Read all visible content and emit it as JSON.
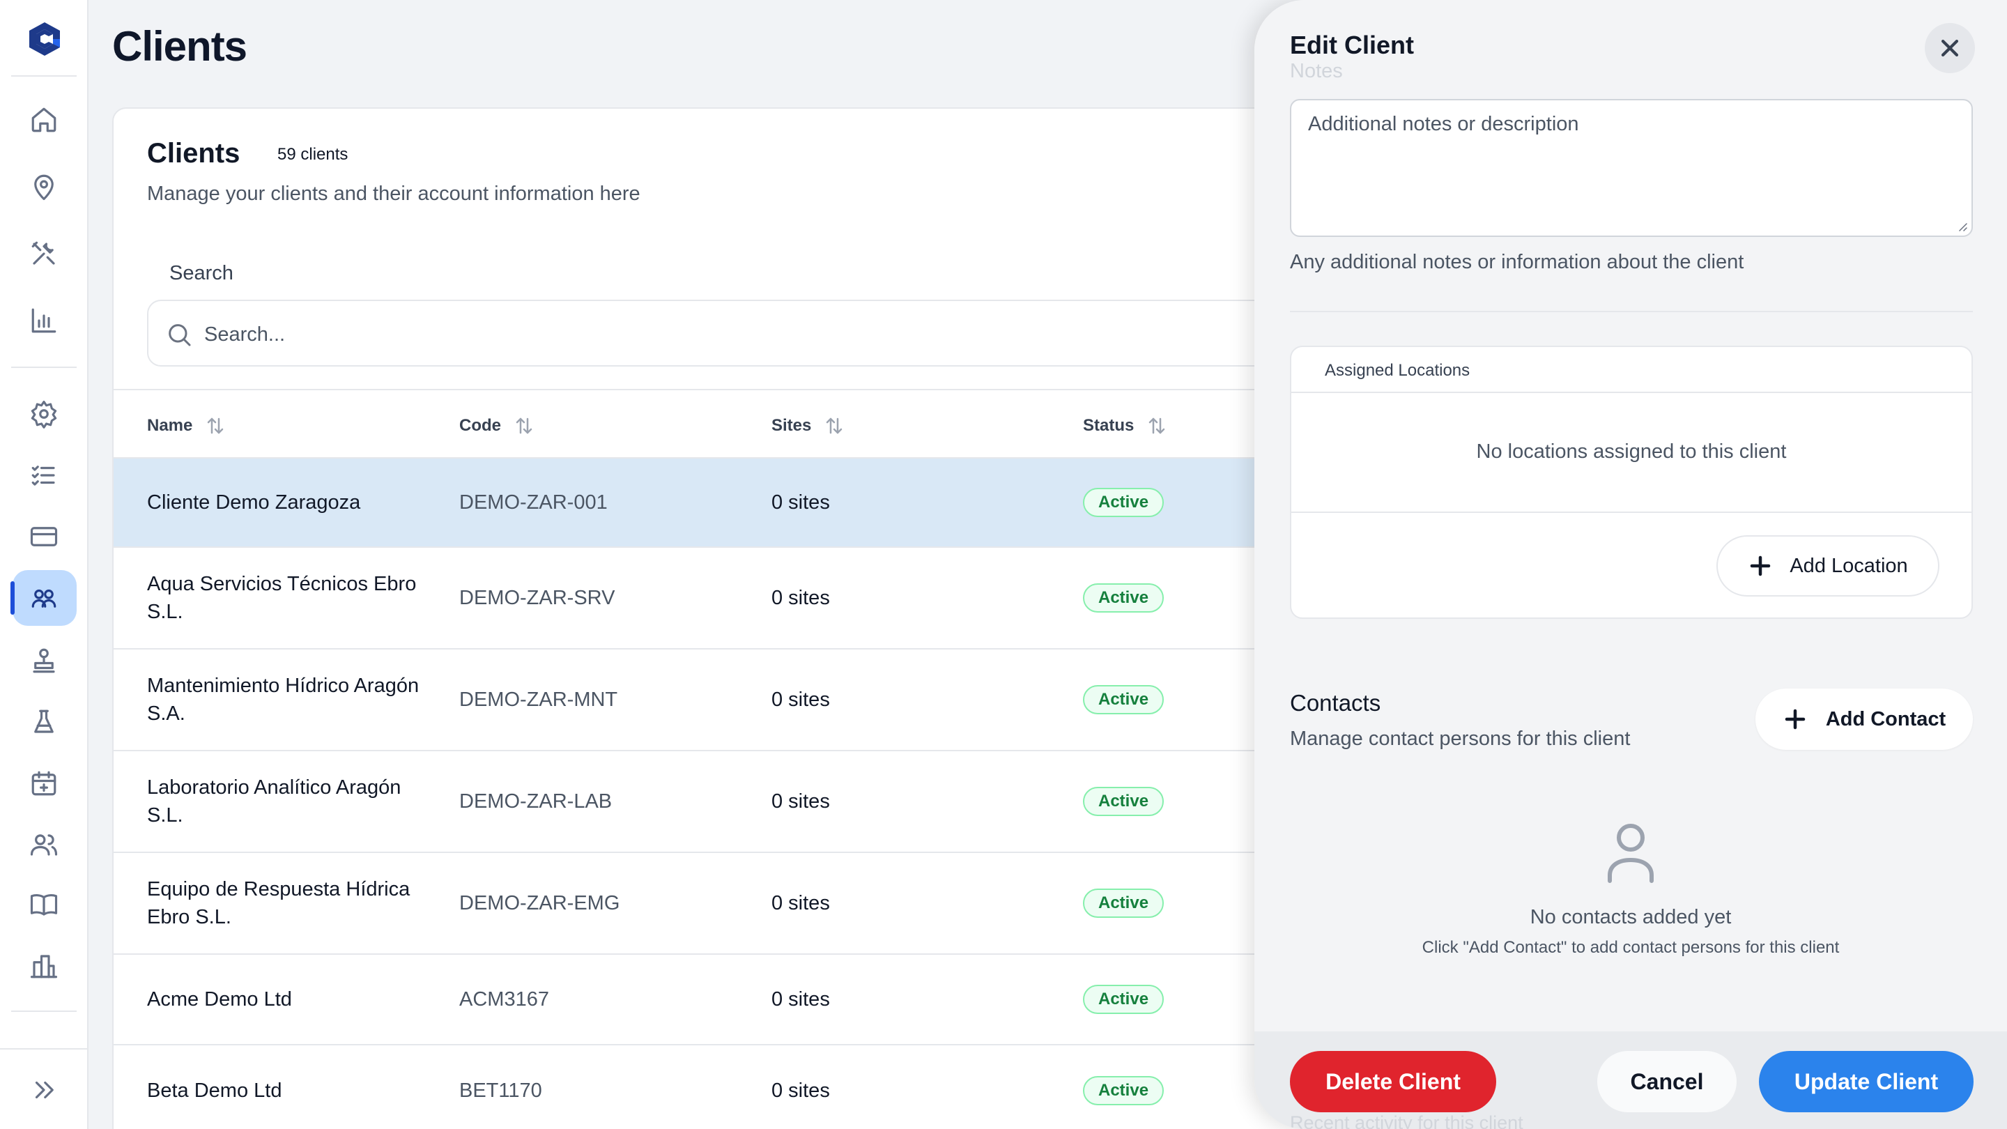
{
  "sidebar": {
    "logo": "logo-icon",
    "items": [
      {
        "name": "home-icon"
      },
      {
        "name": "map-pin-icon"
      },
      {
        "name": "tools-icon"
      },
      {
        "name": "bar-chart-icon"
      },
      {
        "name": "gear-icon"
      },
      {
        "name": "checklist-icon"
      },
      {
        "name": "credit-card-icon"
      },
      {
        "name": "users-icon",
        "active": true
      },
      {
        "name": "stamp-icon"
      },
      {
        "name": "flask-icon"
      },
      {
        "name": "calendar-plus-icon"
      },
      {
        "name": "team-icon"
      },
      {
        "name": "book-icon"
      },
      {
        "name": "building-icon"
      }
    ],
    "expand_icon": "chevrons-right-icon",
    "active_color": "#bfdbfe"
  },
  "page": {
    "title": "Clients"
  },
  "card": {
    "title": "Clients",
    "count": "59 clients",
    "subtitle": "Manage your clients and their account information here",
    "search_label": "Search",
    "search_placeholder": "Search..."
  },
  "table": {
    "columns": [
      "Name",
      "Code",
      "Sites",
      "Status"
    ],
    "rows": [
      {
        "name": "Cliente Demo Zaragoza",
        "code": "DEMO-ZAR-001",
        "sites": "0 sites",
        "status": "Active",
        "selected": true
      },
      {
        "name": "Aqua Servicios Técnicos Ebro S.L.",
        "code": "DEMO-ZAR-SRV",
        "sites": "0 sites",
        "status": "Active"
      },
      {
        "name": "Mantenimiento Hídrico Aragón S.A.",
        "code": "DEMO-ZAR-MNT",
        "sites": "0 sites",
        "status": "Active"
      },
      {
        "name": "Laboratorio Analítico Aragón S.L.",
        "code": "DEMO-ZAR-LAB",
        "sites": "0 sites",
        "status": "Active"
      },
      {
        "name": "Equipo de Respuesta Hídrica Ebro S.L.",
        "code": "DEMO-ZAR-EMG",
        "sites": "0 sites",
        "status": "Active"
      },
      {
        "name": "Acme Demo Ltd",
        "code": "ACM3167",
        "sites": "0 sites",
        "status": "Active"
      },
      {
        "name": "Beta Demo Ltd",
        "code": "BET1170",
        "sites": "0 sites",
        "status": "Active"
      }
    ]
  },
  "panel": {
    "title": "Edit Client",
    "notes_label": "Notes",
    "notes_placeholder": "Additional notes or description",
    "notes_help": "Any additional notes or information about the client",
    "locations_header": "Assigned Locations",
    "locations_empty": "No locations assigned to this client",
    "add_location": "Add Location",
    "contacts_title": "Contacts",
    "contacts_subtitle": "Manage contact persons for this client",
    "add_contact": "Add Contact",
    "contacts_empty_title": "No contacts added yet",
    "contacts_empty_sub": "Click \"Add Contact\" to add contact persons for this client",
    "activity_ghost": "Recent activity for this client",
    "delete": "Delete Client",
    "cancel": "Cancel",
    "update": "Update Client"
  },
  "colors": {
    "accent": "#2b83ec",
    "danger": "#e0242d",
    "active_badge": "#15803d",
    "selected_row": "#d9e8f6"
  }
}
